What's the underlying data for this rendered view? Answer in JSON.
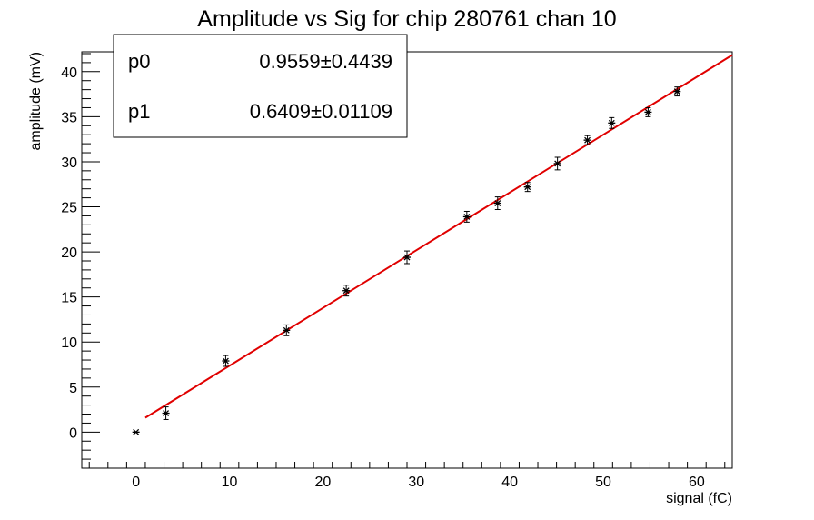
{
  "chart_data": {
    "type": "scatter",
    "title": "Amplitude vs Sig for chip 280761 chan 10",
    "xlabel": "signal (fC)",
    "ylabel": "amplitude (mV)",
    "xlim": [
      -5.8,
      63.8
    ],
    "ylim": [
      -4,
      42.2
    ],
    "xticks": [
      0,
      10,
      20,
      30,
      40,
      50,
      60
    ],
    "yticks": [
      0,
      5,
      10,
      15,
      20,
      25,
      30,
      35,
      40
    ],
    "grid": false,
    "series": [
      {
        "marker": "asterisk",
        "color": "#000000",
        "points": [
          {
            "x": 0.0,
            "y": 0.0,
            "err": 0.0
          },
          {
            "x": 3.2,
            "y": 2.1,
            "err": 0.7
          },
          {
            "x": 9.6,
            "y": 7.9,
            "err": 0.6
          },
          {
            "x": 16.1,
            "y": 11.3,
            "err": 0.6
          },
          {
            "x": 22.5,
            "y": 15.7,
            "err": 0.6
          },
          {
            "x": 29.0,
            "y": 19.4,
            "err": 0.7
          },
          {
            "x": 35.4,
            "y": 23.9,
            "err": 0.6
          },
          {
            "x": 38.7,
            "y": 25.4,
            "err": 0.7
          },
          {
            "x": 41.9,
            "y": 27.2,
            "err": 0.5
          },
          {
            "x": 45.1,
            "y": 29.8,
            "err": 0.7
          },
          {
            "x": 48.3,
            "y": 32.4,
            "err": 0.5
          },
          {
            "x": 50.9,
            "y": 34.3,
            "err": 0.6
          },
          {
            "x": 54.8,
            "y": 35.5,
            "err": 0.5
          },
          {
            "x": 57.9,
            "y": 37.8,
            "err": 0.5
          }
        ]
      }
    ],
    "fit": {
      "color": "#e00000",
      "x_range": [
        1.0,
        63.8
      ],
      "p0": 0.9559,
      "p1": 0.6409
    },
    "stats_box": {
      "placement": "top-left",
      "rows": [
        {
          "name": "p0",
          "value": "0.9559",
          "pm": "±",
          "error": "0.4439"
        },
        {
          "name": "p1",
          "value": "0.6409",
          "pm": "±",
          "error": "0.01109"
        }
      ]
    }
  }
}
